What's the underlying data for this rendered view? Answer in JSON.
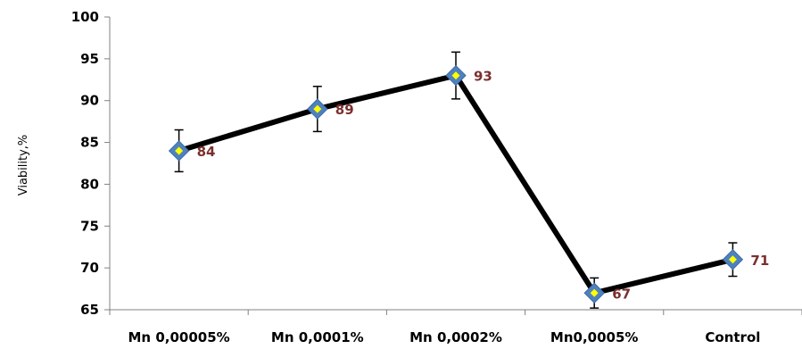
{
  "chart_data": {
    "type": "line",
    "title": "",
    "xlabel": "",
    "ylabel": "Viability,%",
    "categories": [
      "Mn 0,00005%",
      "Mn 0,0001%",
      "Mn 0,0002%",
      "Mn0,0005%",
      "Control"
    ],
    "series": [
      {
        "values": [
          84,
          89,
          93,
          67,
          71
        ],
        "error": [
          2.5,
          2.7,
          2.8,
          1.8,
          2.0
        ],
        "data_labels": [
          "84",
          "89",
          "93",
          "67",
          "71"
        ]
      }
    ],
    "ylim": [
      65,
      100
    ],
    "yticks": [
      "65",
      "70",
      "75",
      "80",
      "85",
      "90",
      "95",
      "100"
    ],
    "grid": false,
    "legend": "none",
    "colors": {
      "line": "#000000",
      "marker_fill": "#4f81bd",
      "marker_center": "#ffff00",
      "data_label": "#7b2f2f",
      "axis": "#808080",
      "error_bar": "#000000"
    }
  }
}
